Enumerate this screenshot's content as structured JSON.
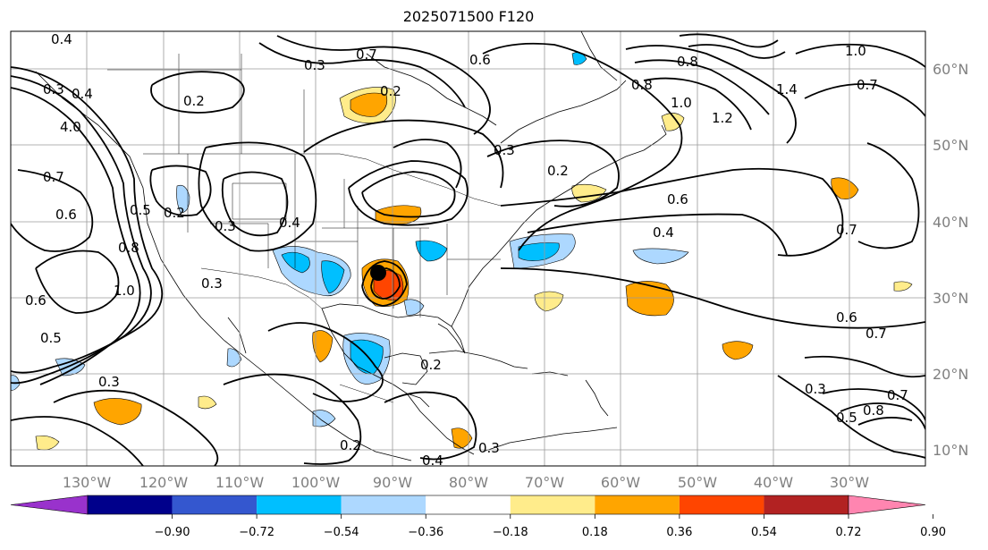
{
  "title": "2025071500 F120",
  "lat_labels": [
    "60°N",
    "50°N",
    "40°N",
    "30°N",
    "20°N",
    "10°N"
  ],
  "lon_labels": [
    "130°W",
    "120°W",
    "110°W",
    "100°W",
    "90°W",
    "80°W",
    "70°W",
    "60°W",
    "50°W",
    "40°W",
    "30°W"
  ],
  "contour_labels": [
    "0.4",
    "0.7",
    "0.6",
    "0.3",
    "0.2",
    "0.4",
    "0.3",
    "4.0",
    "0.7",
    "0.6",
    "0.5",
    "0.8",
    "1.0",
    "0.3",
    "0.2",
    "0.4",
    "0.3",
    "0.2",
    "0.6",
    "0.5",
    "0.3",
    "0.2",
    "0.4",
    "0.3",
    "0.2",
    "0.3",
    "0.2",
    "0.8",
    "1.0",
    "1.2",
    "1.4",
    "0.6",
    "0.4",
    "0.7",
    "0.6",
    "0.7",
    "0.3",
    "0.5",
    "0.8",
    "0.7",
    "1.0",
    "0.7",
    "0.8"
  ],
  "colorbar": {
    "colors": [
      "#9932cc",
      "#00008b",
      "#3457cf",
      "#00bfff",
      "#add8ff",
      "#ffffff",
      "#ffec8b",
      "#ffa500",
      "#ff4500",
      "#b22222",
      "#ff85b0"
    ],
    "ticks": [
      "−0.90",
      "−0.72",
      "−0.54",
      "−0.36",
      "−0.18",
      "0.18",
      "0.36",
      "0.54",
      "0.72",
      "0.90"
    ]
  }
}
